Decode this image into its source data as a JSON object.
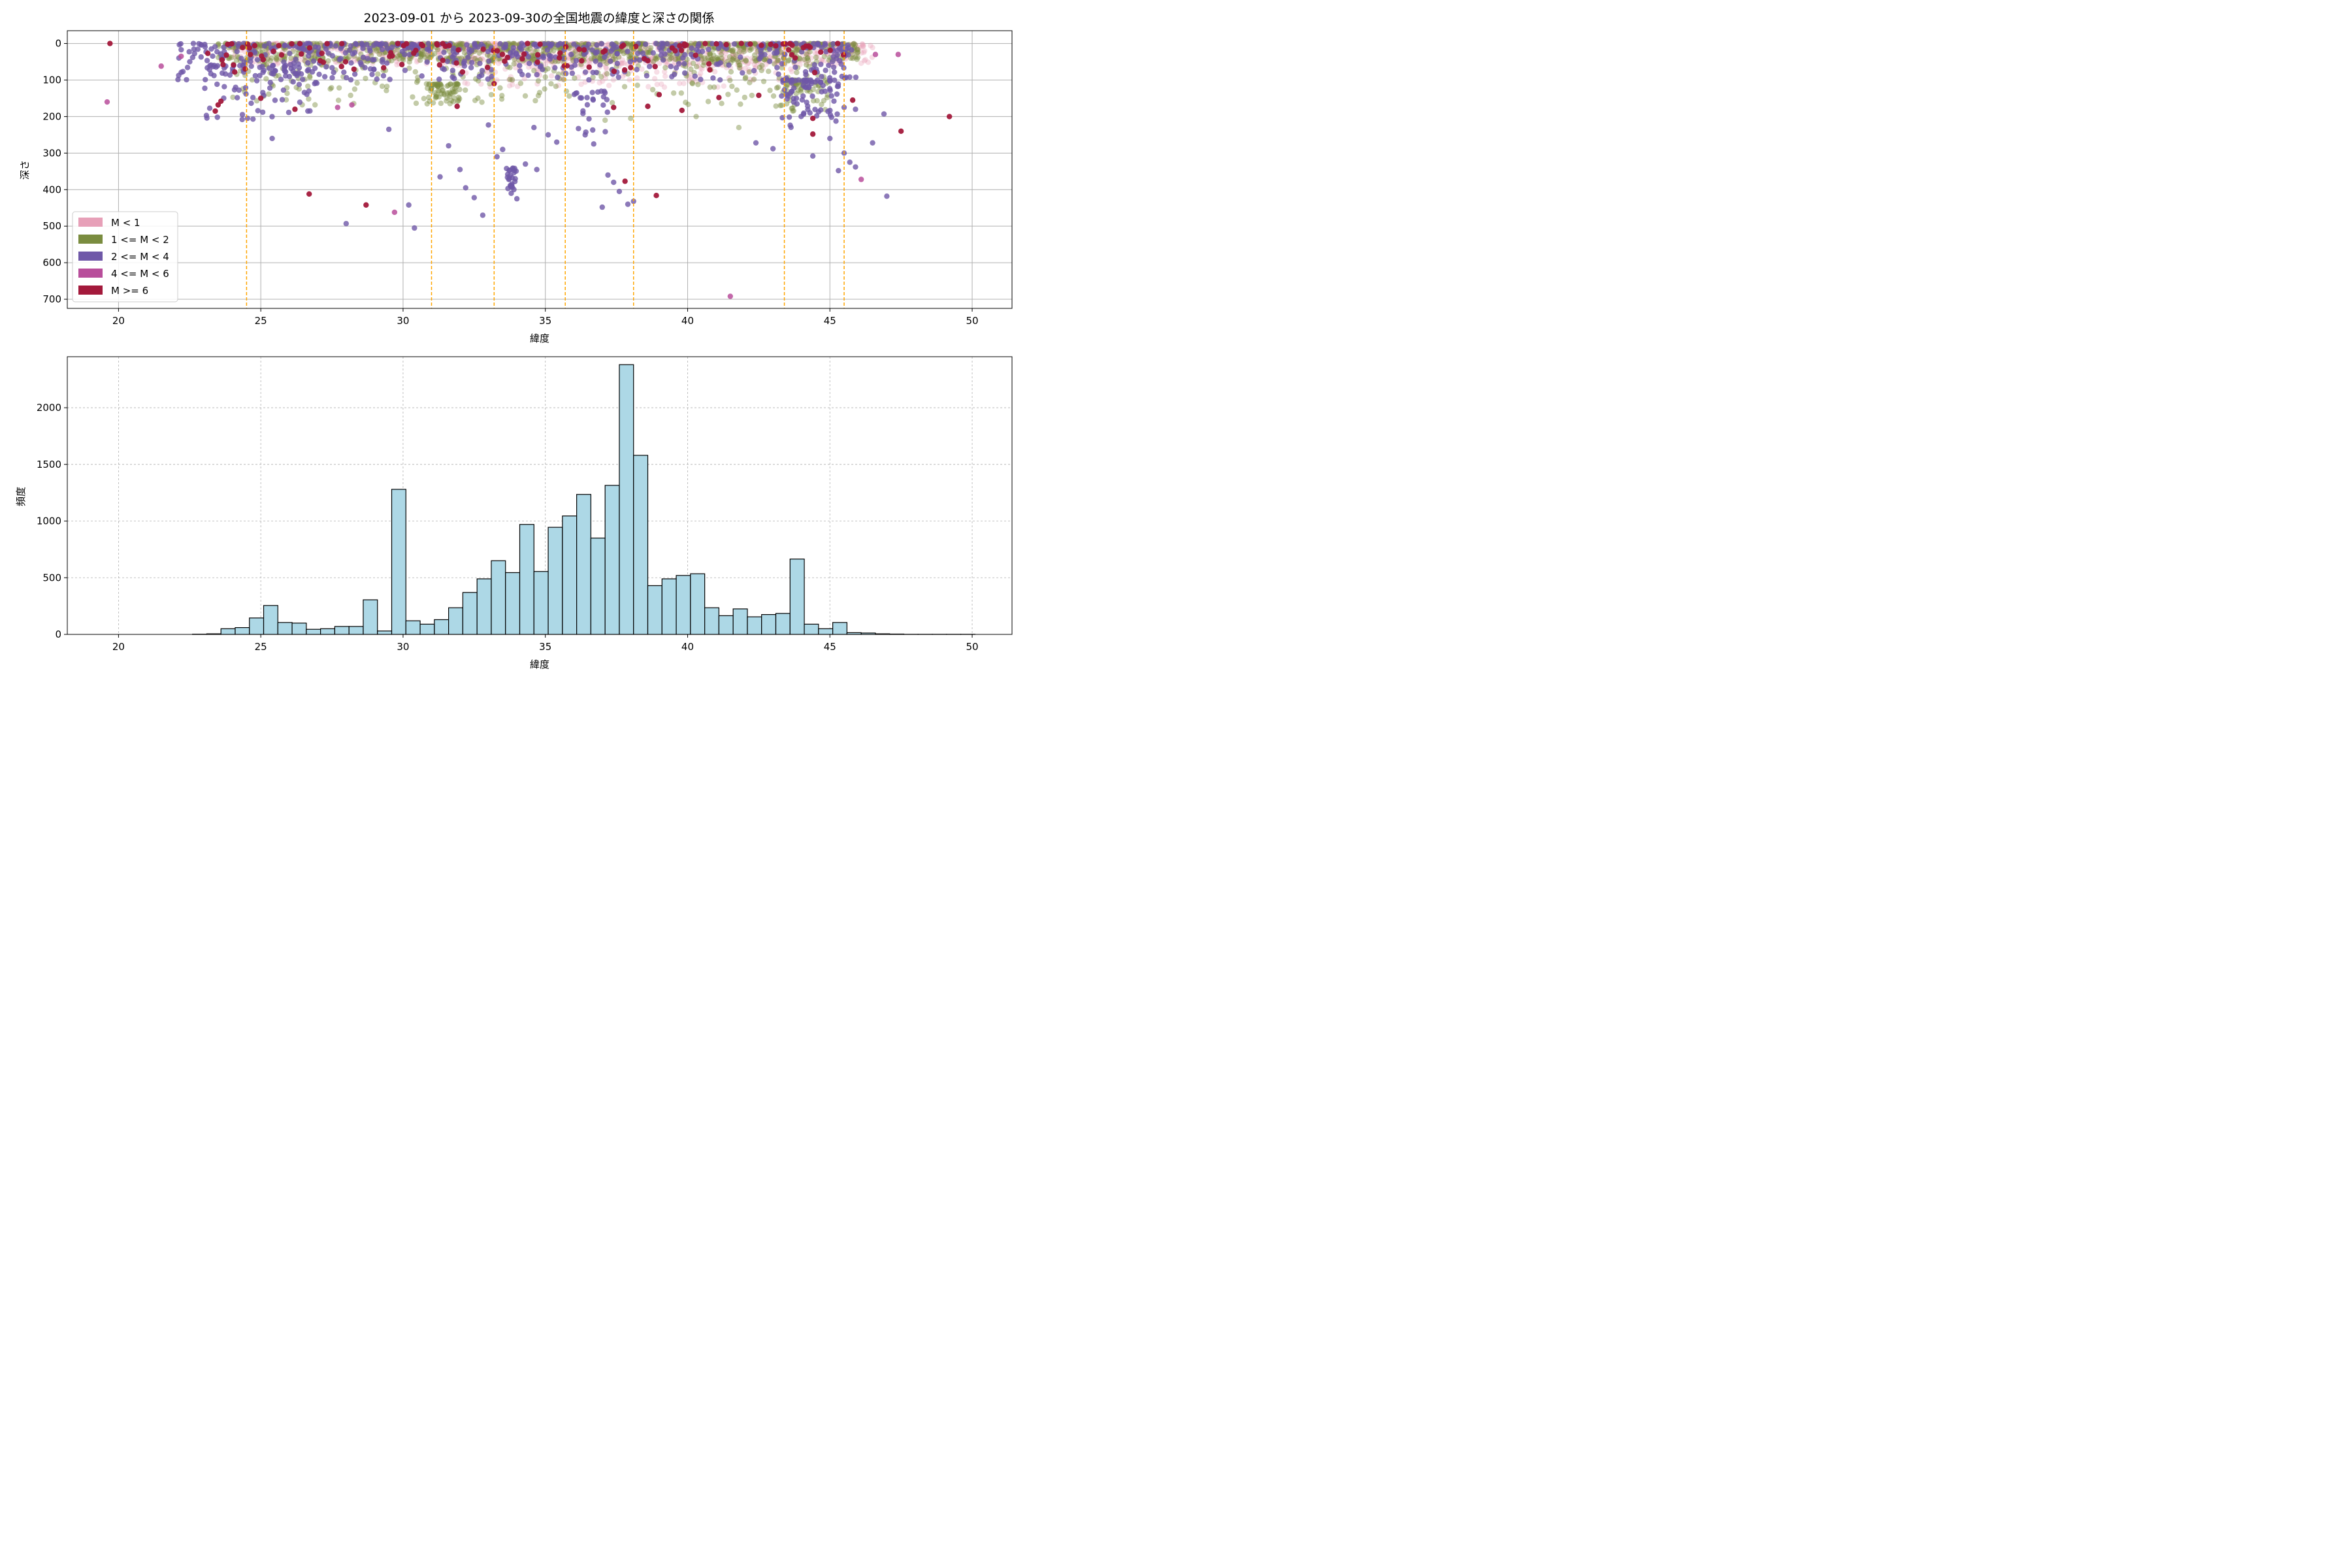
{
  "figure": {
    "title": "2023-09-01 から 2023-09-30の全国地震の緯度と深さの関係"
  },
  "colors": {
    "m_lt1": "#e7a0b8",
    "m_1_2": "#7a8c3f",
    "m_2_4": "#6f58a8",
    "m_4_6": "#b84e9b",
    "m_ge6": "#a3193b",
    "vline": "#ffa500",
    "hist_fill": "#add8e6",
    "hist_edge": "#000000"
  },
  "chart_data": [
    {
      "type": "scatter",
      "title": "2023-09-01 から 2023-09-30の全国地震の緯度と深さの関係",
      "xlabel": "緯度",
      "ylabel": "深さ",
      "xlim": [
        18.2,
        51.4
      ],
      "ylim": [
        725,
        -35
      ],
      "y_inverted": true,
      "grid": true,
      "legend_position": "bottom-left",
      "xticks": [
        20,
        25,
        30,
        35,
        40,
        45,
        50
      ],
      "yticks": [
        0,
        100,
        200,
        300,
        400,
        500,
        600,
        700
      ],
      "vertical_lines": [
        24.5,
        31.0,
        33.2,
        35.7,
        38.1,
        43.4,
        45.5
      ],
      "series": [
        {
          "name": "M < 1",
          "color_key": "m_lt1",
          "opacity": 0.35,
          "clusters": [
            {
              "x_range": [
                24.0,
                46.5
              ],
              "y_range": [
                0,
                60
              ],
              "count": 900
            },
            {
              "x_range": [
                32.0,
                44.0
              ],
              "y_range": [
                40,
                120
              ],
              "count": 220
            }
          ],
          "points": [
            {
              "x": 19.7,
              "y": 0
            }
          ]
        },
        {
          "name": "1 <= M < 2",
          "color_key": "m_1_2",
          "opacity": 0.45,
          "clusters": [
            {
              "x_range": [
                23.5,
                46.0
              ],
              "y_range": [
                0,
                50
              ],
              "count": 850
            },
            {
              "x_range": [
                24.0,
                45.0
              ],
              "y_range": [
                40,
                170
              ],
              "count": 320
            },
            {
              "x_range": [
                30.8,
                32.0
              ],
              "y_range": [
                110,
                165
              ],
              "count": 70
            },
            {
              "x_range": [
                43.0,
                45.0
              ],
              "y_range": [
                100,
                190
              ],
              "count": 60
            }
          ],
          "points": [
            {
              "x": 28.3,
              "y": 125
            },
            {
              "x": 37.1,
              "y": 210
            },
            {
              "x": 40.3,
              "y": 200
            },
            {
              "x": 41.8,
              "y": 230
            },
            {
              "x": 38.0,
              "y": 205
            }
          ]
        },
        {
          "name": "2 <= M < 4",
          "color_key": "m_2_4",
          "opacity": 0.8,
          "clusters": [
            {
              "x_range": [
                22.0,
                46.0
              ],
              "y_range": [
                0,
                100
              ],
              "count": 520
            },
            {
              "x_range": [
                23.0,
                27.0
              ],
              "y_range": [
                60,
                210
              ],
              "count": 90
            },
            {
              "x_range": [
                43.3,
                45.3
              ],
              "y_range": [
                100,
                230
              ],
              "count": 80
            },
            {
              "x_range": [
                33.6,
                34.0
              ],
              "y_range": [
                340,
                400
              ],
              "count": 25
            },
            {
              "x_range": [
                36.0,
                37.2
              ],
              "y_range": [
                130,
                280
              ],
              "count": 25
            }
          ],
          "points": [
            {
              "x": 28.0,
              "y": 493
            },
            {
              "x": 30.4,
              "y": 505
            },
            {
              "x": 30.2,
              "y": 442
            },
            {
              "x": 29.5,
              "y": 235
            },
            {
              "x": 25.4,
              "y": 260
            },
            {
              "x": 31.6,
              "y": 280
            },
            {
              "x": 31.3,
              "y": 365
            },
            {
              "x": 32.0,
              "y": 345
            },
            {
              "x": 32.2,
              "y": 395
            },
            {
              "x": 32.5,
              "y": 422
            },
            {
              "x": 32.8,
              "y": 470
            },
            {
              "x": 33.0,
              "y": 223
            },
            {
              "x": 33.3,
              "y": 310
            },
            {
              "x": 33.5,
              "y": 290
            },
            {
              "x": 33.8,
              "y": 410
            },
            {
              "x": 34.0,
              "y": 425
            },
            {
              "x": 34.3,
              "y": 330
            },
            {
              "x": 34.6,
              "y": 230
            },
            {
              "x": 34.7,
              "y": 345
            },
            {
              "x": 35.1,
              "y": 250
            },
            {
              "x": 35.4,
              "y": 270
            },
            {
              "x": 36.4,
              "y": 250
            },
            {
              "x": 36.7,
              "y": 275
            },
            {
              "x": 37.0,
              "y": 448
            },
            {
              "x": 37.2,
              "y": 360
            },
            {
              "x": 37.4,
              "y": 380
            },
            {
              "x": 37.6,
              "y": 405
            },
            {
              "x": 37.9,
              "y": 440
            },
            {
              "x": 38.1,
              "y": 432
            },
            {
              "x": 42.4,
              "y": 272
            },
            {
              "x": 43.0,
              "y": 288
            },
            {
              "x": 44.4,
              "y": 308
            },
            {
              "x": 45.0,
              "y": 260
            },
            {
              "x": 45.3,
              "y": 348
            },
            {
              "x": 45.5,
              "y": 300
            },
            {
              "x": 45.7,
              "y": 325
            },
            {
              "x": 45.9,
              "y": 338
            },
            {
              "x": 46.5,
              "y": 272
            },
            {
              "x": 46.9,
              "y": 193
            },
            {
              "x": 47.0,
              "y": 418
            },
            {
              "x": 45.5,
              "y": 175
            },
            {
              "x": 44.6,
              "y": 187
            },
            {
              "x": 45.9,
              "y": 180
            }
          ]
        },
        {
          "name": "4 <= M < 6",
          "color_key": "m_4_6",
          "opacity": 0.85,
          "points": [
            {
              "x": 19.6,
              "y": 160
            },
            {
              "x": 21.5,
              "y": 62
            },
            {
              "x": 22.2,
              "y": 35
            },
            {
              "x": 27.7,
              "y": 175
            },
            {
              "x": 28.2,
              "y": 168
            },
            {
              "x": 29.7,
              "y": 462
            },
            {
              "x": 41.5,
              "y": 692
            },
            {
              "x": 46.1,
              "y": 372
            },
            {
              "x": 47.4,
              "y": 30
            },
            {
              "x": 46.6,
              "y": 30
            }
          ]
        },
        {
          "name": "M >= 6",
          "color_key": "m_ge6",
          "opacity": 0.95,
          "clusters": [
            {
              "x_range": [
                23.0,
                45.5
              ],
              "y_range": [
                0,
                80
              ],
              "count": 120
            }
          ],
          "points": [
            {
              "x": 19.7,
              "y": 0
            },
            {
              "x": 23.4,
              "y": 185
            },
            {
              "x": 23.5,
              "y": 168
            },
            {
              "x": 23.6,
              "y": 158
            },
            {
              "x": 26.7,
              "y": 412
            },
            {
              "x": 28.7,
              "y": 442
            },
            {
              "x": 38.9,
              "y": 416
            },
            {
              "x": 37.8,
              "y": 377
            },
            {
              "x": 49.2,
              "y": 200
            },
            {
              "x": 47.5,
              "y": 240
            },
            {
              "x": 45.8,
              "y": 155
            },
            {
              "x": 44.4,
              "y": 248
            },
            {
              "x": 44.4,
              "y": 205
            },
            {
              "x": 37.4,
              "y": 175
            },
            {
              "x": 38.6,
              "y": 172
            },
            {
              "x": 39.8,
              "y": 183
            },
            {
              "x": 41.1,
              "y": 148
            },
            {
              "x": 42.5,
              "y": 142
            },
            {
              "x": 26.2,
              "y": 180
            },
            {
              "x": 25.0,
              "y": 150
            },
            {
              "x": 31.9,
              "y": 172
            },
            {
              "x": 33.2,
              "y": 110
            },
            {
              "x": 39.0,
              "y": 140
            }
          ]
        }
      ]
    },
    {
      "type": "bar",
      "subtype": "histogram",
      "xlabel": "緯度",
      "ylabel": "頻度",
      "xlim": [
        18.2,
        51.4
      ],
      "ylim": [
        0,
        2450
      ],
      "grid": true,
      "xticks": [
        20,
        25,
        30,
        35,
        40,
        45,
        50
      ],
      "yticks": [
        0,
        500,
        1000,
        1500,
        2000
      ],
      "bin_start": 19.6,
      "bin_width": 0.5,
      "values": [
        0,
        0,
        0,
        0,
        0,
        0,
        2,
        5,
        50,
        60,
        145,
        255,
        105,
        100,
        45,
        50,
        70,
        70,
        305,
        30,
        1280,
        120,
        90,
        130,
        235,
        370,
        490,
        650,
        545,
        970,
        555,
        945,
        1045,
        1235,
        850,
        1315,
        2380,
        1580,
        430,
        490,
        520,
        535,
        235,
        165,
        225,
        155,
        175,
        185,
        665,
        90,
        50,
        105,
        15,
        12,
        5,
        3,
        1,
        1,
        1,
        1,
        1
      ]
    }
  ]
}
